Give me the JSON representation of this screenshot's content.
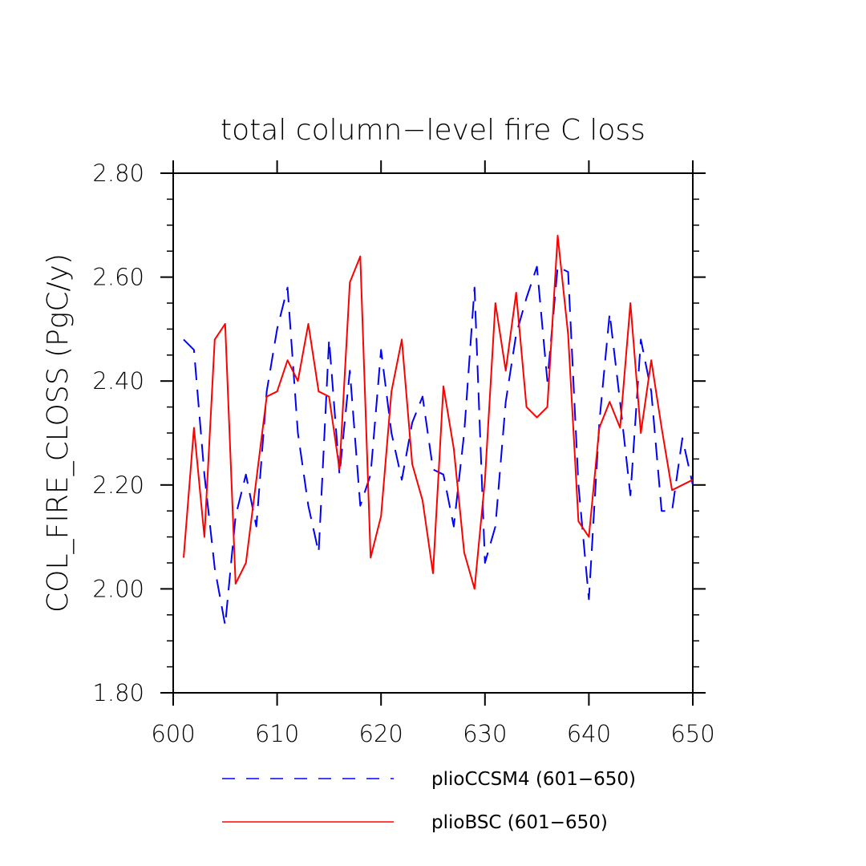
{
  "chart_data": {
    "type": "line",
    "title": "total column−level fire C loss",
    "ylabel": "COL_FIRE_CLOSS  (PgC/y)",
    "xlabel": "",
    "xlim": [
      600,
      650
    ],
    "ylim": [
      1.8,
      2.8
    ],
    "x_ticks": [
      "600",
      "610",
      "620",
      "630",
      "640",
      "650"
    ],
    "y_ticks": [
      "1.80",
      "2.00",
      "2.20",
      "2.40",
      "2.60",
      "2.80"
    ],
    "legend_placement": "bottom",
    "x": [
      601,
      602,
      603,
      604,
      605,
      606,
      607,
      608,
      609,
      610,
      611,
      612,
      613,
      614,
      615,
      616,
      617,
      618,
      619,
      620,
      621,
      622,
      623,
      624,
      625,
      626,
      627,
      628,
      629,
      630,
      631,
      632,
      633,
      634,
      635,
      636,
      637,
      638,
      639,
      640,
      641,
      642,
      643,
      644,
      645,
      646,
      647,
      648,
      649,
      650
    ],
    "series": [
      {
        "name": "plioCCSM4 (601−650)",
        "color": "#0000ff",
        "dash": "dashed",
        "values": [
          2.48,
          2.46,
          2.22,
          2.04,
          1.93,
          2.14,
          2.22,
          2.12,
          2.38,
          2.5,
          2.58,
          2.3,
          2.16,
          2.07,
          2.48,
          2.22,
          2.42,
          2.16,
          2.22,
          2.46,
          2.3,
          2.21,
          2.32,
          2.37,
          2.23,
          2.22,
          2.12,
          2.3,
          2.58,
          2.05,
          2.12,
          2.36,
          2.49,
          2.56,
          2.62,
          2.4,
          2.62,
          2.61,
          2.2,
          1.98,
          2.32,
          2.53,
          2.36,
          2.18,
          2.48,
          2.38,
          2.15,
          2.15,
          2.29,
          2.2
        ]
      },
      {
        "name": "plioBSC (601−650)",
        "color": "#ff0000",
        "dash": "solid",
        "values": [
          2.06,
          2.31,
          2.1,
          2.48,
          2.51,
          2.01,
          2.05,
          2.21,
          2.37,
          2.38,
          2.44,
          2.4,
          2.51,
          2.38,
          2.37,
          2.23,
          2.59,
          2.64,
          2.06,
          2.14,
          2.38,
          2.48,
          2.24,
          2.17,
          2.03,
          2.39,
          2.27,
          2.07,
          2.0,
          2.21,
          2.55,
          2.42,
          2.57,
          2.35,
          2.33,
          2.35,
          2.68,
          2.49,
          2.13,
          2.1,
          2.31,
          2.36,
          2.31,
          2.55,
          2.3,
          2.44,
          2.31,
          2.19,
          2.2,
          2.21
        ]
      }
    ]
  }
}
